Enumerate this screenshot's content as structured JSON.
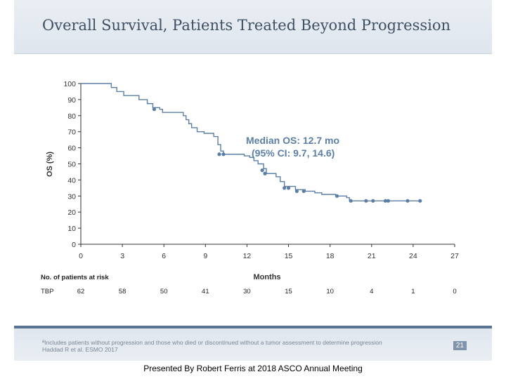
{
  "slide": {
    "title": "Overall Survival, Patients Treated Beyond Progression",
    "footnote_lines": [
      "ªIncludes patients without progression and those who died or discontinued without a tumor assessment to determine progression",
      "Haddad R et al. ESMO 2017"
    ],
    "page_number": "21",
    "caption": "Presented By Robert Ferris at 2018 ASCO Annual Meeting"
  },
  "colors": {
    "curve": "#5b7fa6",
    "axis": "#333333",
    "annotation": "#5b7fa6",
    "title": "#3f4f63"
  },
  "chart_data": {
    "type": "line",
    "title": "",
    "xlabel": "Months",
    "ylabel": "OS (%)",
    "xlim": [
      0,
      27
    ],
    "ylim": [
      0,
      100
    ],
    "x_ticks": [
      0,
      3,
      6,
      9,
      12,
      15,
      18,
      21,
      24,
      27
    ],
    "y_ticks": [
      0,
      10,
      20,
      30,
      40,
      50,
      60,
      70,
      80,
      90,
      100
    ],
    "series": [
      {
        "name": "TBP",
        "steps": [
          [
            0,
            100
          ],
          [
            2,
            100
          ],
          [
            2.2,
            97.5
          ],
          [
            2.6,
            95
          ],
          [
            3.1,
            92.5
          ],
          [
            4.2,
            90
          ],
          [
            4.8,
            87.5
          ],
          [
            5.2,
            85
          ],
          [
            5.7,
            84
          ],
          [
            5.9,
            82
          ],
          [
            7.4,
            80
          ],
          [
            7.6,
            77.5
          ],
          [
            7.8,
            75
          ],
          [
            8.0,
            72.5
          ],
          [
            8.4,
            70
          ],
          [
            8.9,
            69
          ],
          [
            9.6,
            67
          ],
          [
            9.9,
            62
          ],
          [
            10.1,
            58
          ],
          [
            10.3,
            56
          ],
          [
            11.8,
            55
          ],
          [
            12.2,
            54
          ],
          [
            12.5,
            52
          ],
          [
            12.8,
            50
          ],
          [
            13.2,
            47
          ],
          [
            13.4,
            44
          ],
          [
            14.1,
            42
          ],
          [
            14.4,
            39
          ],
          [
            14.7,
            36
          ],
          [
            15.5,
            34
          ],
          [
            16.2,
            33
          ],
          [
            16.9,
            32
          ],
          [
            17.4,
            31
          ],
          [
            18.4,
            30
          ],
          [
            19.2,
            29
          ],
          [
            19.4,
            27
          ],
          [
            24.5,
            27
          ]
        ],
        "censored": [
          [
            5.3,
            84
          ],
          [
            10.0,
            56
          ],
          [
            10.3,
            56
          ],
          [
            13.1,
            46
          ],
          [
            13.3,
            44
          ],
          [
            14.7,
            35
          ],
          [
            15.0,
            35
          ],
          [
            15.6,
            33
          ],
          [
            16.1,
            33
          ],
          [
            18.5,
            30
          ],
          [
            19.5,
            27
          ],
          [
            20.6,
            27
          ],
          [
            21.1,
            27
          ],
          [
            22.0,
            27
          ],
          [
            22.2,
            27
          ],
          [
            23.6,
            27
          ],
          [
            24.5,
            27
          ]
        ]
      }
    ],
    "annotation_lines": [
      "Median OS: 12.7 mo",
      "(95% CI: 9.7, 14.6)"
    ],
    "risk_table": {
      "header": "No. of patients at risk",
      "rows": [
        {
          "label": "TBP",
          "values": [
            "62",
            "58",
            "50",
            "41",
            "30",
            "15",
            "10",
            "4",
            "1",
            "0"
          ]
        }
      ]
    }
  }
}
